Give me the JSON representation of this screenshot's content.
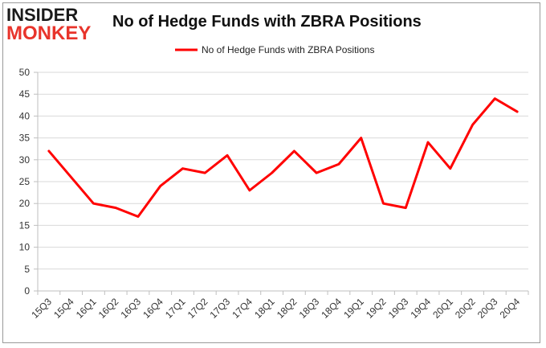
{
  "logo": {
    "line1": "INSIDER",
    "line2": "MONKEY"
  },
  "chart_data": {
    "type": "line",
    "title": "No of Hedge Funds with ZBRA Positions",
    "xlabel": "",
    "ylabel": "",
    "ylim": [
      0,
      50
    ],
    "yticks": [
      0,
      5,
      10,
      15,
      20,
      25,
      30,
      35,
      40,
      45,
      50
    ],
    "grid": true,
    "legend_position": "top-center",
    "categories": [
      "15Q3",
      "15Q4",
      "16Q1",
      "16Q2",
      "16Q3",
      "16Q4",
      "17Q1",
      "17Q2",
      "17Q3",
      "17Q4",
      "18Q1",
      "18Q2",
      "18Q3",
      "18Q4",
      "19Q1",
      "19Q2",
      "19Q3",
      "19Q4",
      "20Q1",
      "20Q2",
      "20Q3",
      "20Q4"
    ],
    "series": [
      {
        "name": "No of Hedge Funds with ZBRA Positions",
        "color": "#ff0000",
        "values": [
          32,
          26,
          20,
          19,
          17,
          24,
          28,
          27,
          31,
          23,
          27,
          32,
          27,
          29,
          35,
          20,
          19,
          34,
          28,
          38,
          44,
          41
        ]
      }
    ]
  }
}
